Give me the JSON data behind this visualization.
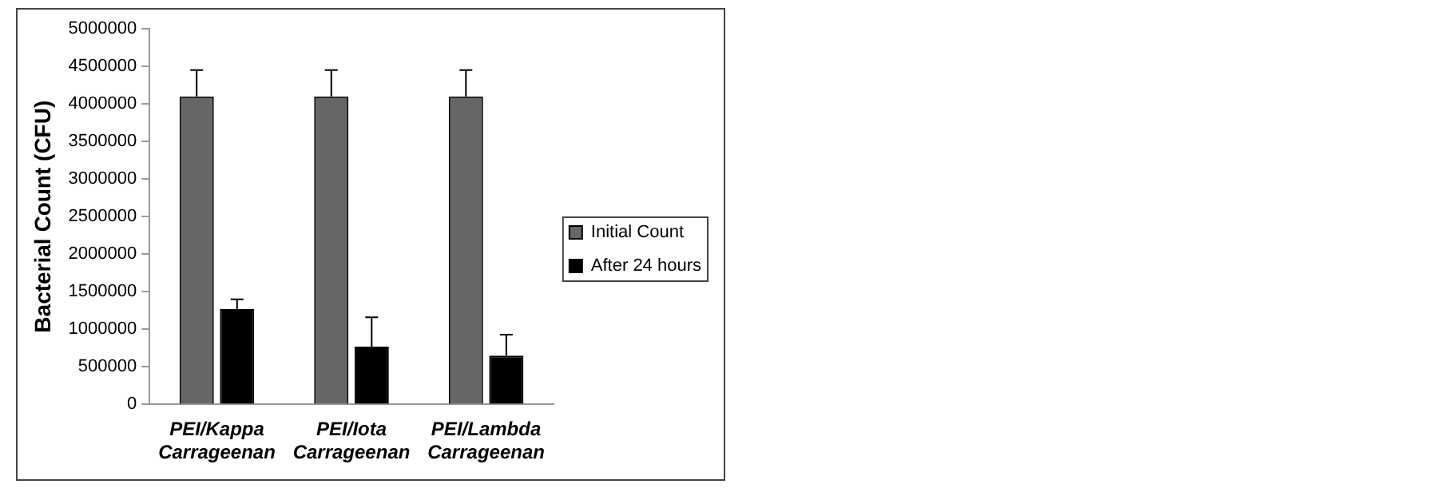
{
  "chart_data": {
    "type": "bar",
    "ylabel": "Bacterial Count (CFU)",
    "categories": [
      "PEI/Kappa\nCarrageenan",
      "PEI/Iota\nCarrageenan",
      "PEI/Lambda\nCarrageenan"
    ],
    "series": [
      {
        "name": "Initial Count",
        "color": "#666666",
        "values": [
          4100000,
          4100000,
          4100000
        ],
        "errors": [
          [
            4100000,
            4450000
          ],
          [
            4100000,
            4450000
          ],
          [
            4100000,
            4450000
          ]
        ]
      },
      {
        "name": "After 24 hours",
        "color": "#000000",
        "values": [
          1270000,
          770000,
          650000
        ],
        "errors": [
          [
            1270000,
            1400000
          ],
          [
            770000,
            1160000
          ],
          [
            650000,
            930000
          ]
        ]
      }
    ],
    "ylim": [
      0,
      5000000
    ],
    "yticks": [
      0,
      500000,
      1000000,
      1500000,
      2000000,
      2500000,
      3000000,
      3500000,
      4000000,
      4500000,
      5000000
    ],
    "grid": false,
    "legend": "right"
  }
}
